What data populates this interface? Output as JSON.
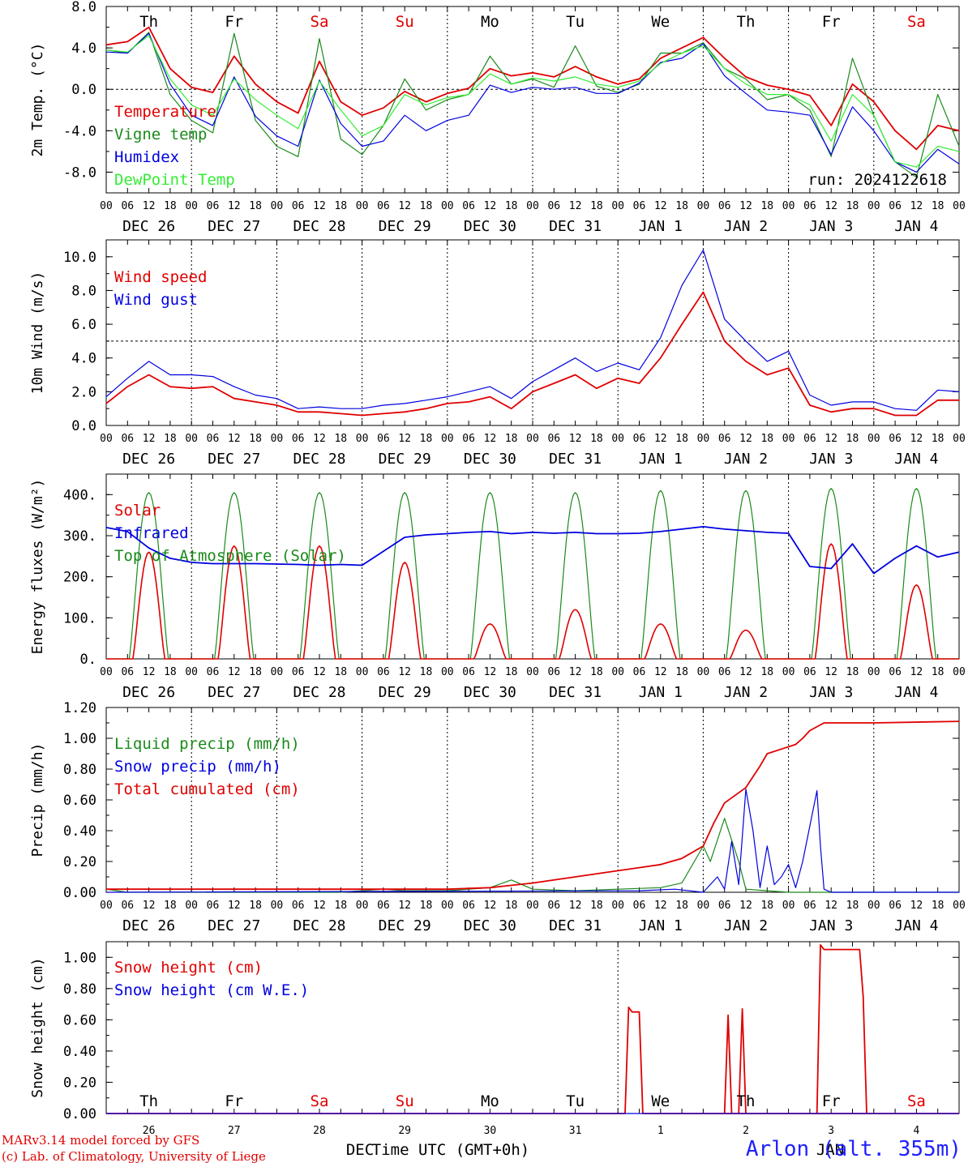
{
  "colors": {
    "temperature": "#e00000",
    "vigne_temp": "#1a8a1a",
    "humidex": "#0000e0",
    "dewpoint": "#33ee33",
    "wind_speed": "#e00000",
    "wind_gust": "#0000e0",
    "solar": "#e00000",
    "infrared": "#0000e0",
    "toa": "#1a8a1a",
    "liquid": "#1a8a1a",
    "snow": "#0000e0",
    "cumulated": "#e00000",
    "snow_height": "#e00000",
    "snow_we": "#0000e0",
    "weekend": "#e00000",
    "axis": "#000000"
  },
  "footer": {
    "credit_line1": "MARv3.14 model forced by GFS",
    "credit_line2": "(c) Lab. of Climatology, University of Liege",
    "station": "Arlon (alt. 355m)"
  },
  "chart_data": [
    {
      "type": "line",
      "ylabel": "2m Temp. (°C)",
      "ylim": [
        -10,
        8
      ],
      "yticks": [
        -8,
        -4,
        0,
        4,
        8
      ],
      "ytick_labels": [
        "-8.0",
        "-4.0",
        "0.0",
        "4.0",
        "8.0"
      ],
      "ref_line": 0,
      "weekdays": [
        {
          "label": "Th",
          "weekend": false
        },
        {
          "label": "Fr",
          "weekend": false
        },
        {
          "label": "Sa",
          "weekend": true
        },
        {
          "label": "Su",
          "weekend": true
        },
        {
          "label": "Mo",
          "weekend": false
        },
        {
          "label": "Tu",
          "weekend": false
        },
        {
          "label": "We",
          "weekend": false
        },
        {
          "label": "Th",
          "weekend": false
        },
        {
          "label": "Fr",
          "weekend": false
        },
        {
          "label": "Sa",
          "weekend": true
        }
      ],
      "run_label": "run: 2024122618",
      "x_hours": [
        0,
        6,
        12,
        18,
        24,
        30,
        36,
        42,
        48,
        54,
        60,
        66,
        72,
        78,
        84,
        90,
        96,
        102,
        108,
        114,
        120,
        126,
        132,
        138,
        144,
        150,
        156,
        162,
        168,
        174,
        180,
        186,
        192,
        198,
        204,
        210,
        216,
        222,
        228,
        234,
        240
      ],
      "series": [
        {
          "name": "Temperature",
          "color_key": "temperature",
          "values": [
            4.3,
            4.6,
            6.0,
            2.0,
            0.2,
            -0.3,
            3.2,
            0.5,
            -1.2,
            -2.3,
            2.7,
            -1.2,
            -2.5,
            -1.8,
            -0.2,
            -1.2,
            -0.4,
            0.1,
            2.0,
            1.3,
            1.6,
            1.2,
            2.2,
            1.2,
            0.5,
            1.0,
            3.0,
            4.0,
            5.0,
            3.0,
            1.2,
            0.4,
            0.0,
            -0.6,
            -3.5,
            0.5,
            -1.2,
            -4.0,
            -5.8,
            -3.5,
            -4.0
          ]
        },
        {
          "name": "Vigne temp",
          "color_key": "vigne_temp",
          "values": [
            3.8,
            3.5,
            5.5,
            -0.5,
            -3.0,
            -4.2,
            5.4,
            -3.0,
            -5.5,
            -6.5,
            4.9,
            -4.8,
            -6.3,
            -3.5,
            1.0,
            -2.0,
            -1.0,
            -0.5,
            3.2,
            0.5,
            1.0,
            0.2,
            4.2,
            0.3,
            -0.3,
            0.5,
            3.5,
            3.5,
            4.5,
            2.0,
            1.0,
            -1.0,
            -0.5,
            -2.0,
            -6.5,
            3.0,
            -2.5,
            -7.0,
            -8.5,
            -0.5,
            -5.5
          ]
        },
        {
          "name": "Humidex",
          "color_key": "humidex",
          "values": [
            3.6,
            3.5,
            5.4,
            0.5,
            -2.5,
            -3.5,
            1.2,
            -2.6,
            -4.5,
            -5.5,
            0.9,
            -3.3,
            -5.5,
            -5.0,
            -2.5,
            -4.0,
            -3.0,
            -2.5,
            0.4,
            -0.3,
            0.2,
            0.0,
            0.2,
            -0.4,
            -0.4,
            0.6,
            2.6,
            3.0,
            4.4,
            1.3,
            -0.4,
            -2.0,
            -2.2,
            -2.5,
            -6.3,
            -1.7,
            -4.0,
            -7.0,
            -8.0,
            -5.8,
            -7.2
          ]
        },
        {
          "name": "DewPoint Temp",
          "color_key": "dewpoint",
          "values": [
            3.8,
            3.6,
            5.2,
            1.0,
            -1.5,
            -2.5,
            1.0,
            -1.0,
            -2.5,
            -3.8,
            0.8,
            -2.0,
            -4.5,
            -3.5,
            -0.5,
            -1.5,
            -0.8,
            -0.5,
            1.5,
            0.5,
            1.1,
            0.8,
            1.2,
            0.5,
            0.2,
            0.8,
            2.5,
            3.5,
            4.2,
            2.0,
            0.5,
            -0.5,
            -0.5,
            -1.5,
            -5.0,
            -0.5,
            -2.5,
            -7.0,
            -7.5,
            -5.5,
            -6.0
          ]
        }
      ]
    },
    {
      "type": "line",
      "ylabel": "10m Wind (m/s)",
      "ylim": [
        0,
        11
      ],
      "yticks": [
        0,
        2,
        4,
        6,
        8,
        10
      ],
      "ytick_labels": [
        "0.0",
        "2.0",
        "4.0",
        "6.0",
        "8.0",
        "10.0"
      ],
      "ref_line": 5,
      "x_hours": [
        0,
        6,
        12,
        18,
        24,
        30,
        36,
        42,
        48,
        54,
        60,
        66,
        72,
        78,
        84,
        90,
        96,
        102,
        108,
        114,
        120,
        126,
        132,
        138,
        144,
        150,
        156,
        162,
        168,
        174,
        180,
        186,
        192,
        198,
        204,
        210,
        216,
        222,
        228,
        234,
        240
      ],
      "series": [
        {
          "name": "Wind speed",
          "color_key": "wind_speed",
          "values": [
            1.3,
            2.3,
            3.0,
            2.3,
            2.2,
            2.3,
            1.6,
            1.4,
            1.2,
            0.8,
            0.8,
            0.7,
            0.6,
            0.7,
            0.8,
            1.0,
            1.3,
            1.4,
            1.7,
            1.0,
            2.0,
            2.5,
            3.0,
            2.2,
            2.8,
            2.5,
            4.0,
            6.0,
            7.9,
            5.0,
            3.8,
            3.0,
            3.4,
            1.2,
            0.8,
            1.0,
            1.0,
            0.6,
            0.6,
            1.5,
            1.5
          ]
        },
        {
          "name": "Wind gust",
          "color_key": "wind_gust",
          "values": [
            1.7,
            2.8,
            3.8,
            3.0,
            3.0,
            2.9,
            2.3,
            1.8,
            1.6,
            1.0,
            1.1,
            1.0,
            1.0,
            1.2,
            1.3,
            1.5,
            1.7,
            2.0,
            2.3,
            1.6,
            2.6,
            3.3,
            4.0,
            3.2,
            3.7,
            3.3,
            5.2,
            8.3,
            10.4,
            6.3,
            5.0,
            3.8,
            4.4,
            1.8,
            1.2,
            1.4,
            1.4,
            1.0,
            0.9,
            2.1,
            2.0
          ]
        }
      ]
    },
    {
      "type": "line",
      "ylabel": "Energy fluxes (W/m²)",
      "ylim": [
        0,
        450
      ],
      "yticks": [
        0,
        100,
        200,
        300,
        400
      ],
      "ytick_labels": [
        "0.",
        "100.",
        "200.",
        "300.",
        "400."
      ],
      "ref_line": null,
      "diurnal_peaks": {
        "solar": [
          260,
          275,
          275,
          235,
          85,
          120,
          85,
          70,
          280,
          180
        ],
        "toa": [
          405,
          405,
          405,
          405,
          405,
          405,
          410,
          410,
          415,
          415
        ]
      },
      "series": [
        {
          "name": "Solar",
          "color_key": "solar"
        },
        {
          "name": "Infrared",
          "color_key": "infrared",
          "x_hours": [
            0,
            6,
            12,
            18,
            24,
            30,
            36,
            42,
            48,
            54,
            60,
            66,
            72,
            78,
            84,
            90,
            96,
            102,
            108,
            114,
            120,
            126,
            132,
            138,
            144,
            150,
            156,
            162,
            168,
            174,
            180,
            186,
            192,
            198,
            204,
            210,
            216,
            222,
            228,
            234,
            240
          ],
          "values": [
            320,
            310,
            270,
            245,
            235,
            232,
            232,
            232,
            231,
            230,
            228,
            230,
            228,
            262,
            296,
            302,
            305,
            308,
            310,
            305,
            308,
            306,
            308,
            305,
            305,
            306,
            310,
            316,
            322,
            316,
            312,
            308,
            306,
            225,
            220,
            280,
            208,
            245,
            275,
            248,
            260
          ]
        },
        {
          "name": "Top of Atmosphere (Solar)",
          "color_key": "toa"
        }
      ]
    },
    {
      "type": "line",
      "ylabel": "Precip (mm/h)",
      "ylim": [
        0,
        1.2
      ],
      "yticks": [
        0,
        0.2,
        0.4,
        0.6,
        0.8,
        1.0,
        1.2
      ],
      "ytick_labels": [
        "0.00",
        "0.20",
        "0.40",
        "0.60",
        "0.80",
        "1.00",
        "1.20"
      ],
      "ref_line": null,
      "series": [
        {
          "name": "Liquid precip (mm/h)",
          "color_key": "liquid",
          "x_hours": [
            0,
            3,
            6,
            66,
            72,
            78,
            84,
            96,
            108,
            114,
            120,
            132,
            144,
            156,
            162,
            168,
            170,
            174,
            178,
            180,
            186,
            192,
            240
          ],
          "values": [
            0.02,
            0.01,
            0,
            0,
            0.01,
            0.02,
            0.01,
            0.01,
            0.03,
            0.08,
            0.02,
            0.01,
            0.02,
            0.03,
            0.06,
            0.3,
            0.2,
            0.48,
            0.2,
            0.02,
            0.01,
            0,
            0
          ]
        },
        {
          "name": "Snow precip (mm/h)",
          "color_key": "snow",
          "x_hours": [
            0,
            150,
            160,
            168,
            172,
            174,
            176,
            178,
            180,
            182,
            184,
            186,
            188,
            190,
            192,
            194,
            196,
            200,
            201,
            202,
            204,
            208,
            240
          ],
          "values": [
            0,
            0.01,
            0.02,
            0.0,
            0.1,
            0.02,
            0.33,
            0.05,
            0.67,
            0.4,
            0.03,
            0.3,
            0.05,
            0.1,
            0.18,
            0.03,
            0.2,
            0.66,
            0.3,
            0.02,
            0.0,
            0.0,
            0.0
          ]
        },
        {
          "name": "Total cumulated (cm)",
          "color_key": "cumulated",
          "x_hours": [
            0,
            24,
            48,
            72,
            90,
            96,
            108,
            120,
            132,
            144,
            150,
            156,
            162,
            168,
            171,
            174,
            180,
            184,
            186,
            190,
            194,
            196,
            198,
            202,
            216,
            240
          ],
          "values": [
            0.02,
            0.02,
            0.02,
            0.02,
            0.02,
            0.02,
            0.03,
            0.06,
            0.1,
            0.14,
            0.16,
            0.18,
            0.22,
            0.3,
            0.45,
            0.58,
            0.68,
            0.82,
            0.9,
            0.93,
            0.96,
            1.0,
            1.05,
            1.1,
            1.1,
            1.11
          ]
        }
      ]
    },
    {
      "type": "line",
      "ylabel": "Snow height (cm)",
      "ylim": [
        0,
        1.1
      ],
      "yticks": [
        0,
        0.2,
        0.4,
        0.6,
        0.8,
        1.0
      ],
      "ytick_labels": [
        "0.00",
        "0.20",
        "0.40",
        "0.60",
        "0.80",
        "1.00"
      ],
      "ref_line": null,
      "series": [
        {
          "name": "Snow height (cm)",
          "color_key": "snow_height",
          "x_hours": [
            0,
            146,
            147,
            148,
            150,
            151,
            240
          ],
          "values": [
            0,
            0,
            0.68,
            0.65,
            0.65,
            0,
            0
          ],
          "extra_spikes": [
            [
              174,
              175,
              176,
              0.63
            ],
            [
              178,
              179,
              180,
              0.67
            ]
          ],
          "plateau": [
            [
              200,
              201,
              202,
              210,
              212,
              213,
              214
            ],
            [
              0,
              1.08,
              1.05,
              1.05,
              1.05,
              0.75,
              0
            ]
          ]
        },
        {
          "name": "Snow height (cm W.E.)",
          "color_key": "snow_we",
          "x_hours": [
            0,
            240
          ],
          "values": [
            0,
            0
          ]
        }
      ],
      "day_numbers": [
        "26",
        "27",
        "28",
        "29",
        "30",
        "31",
        "1",
        "2",
        "3",
        "4"
      ],
      "xlabel": "Time UTC (GMT+0h)",
      "under_labels": [
        "DEC",
        "JAN"
      ]
    }
  ],
  "date_labels": [
    "DEC 26",
    "DEC 27",
    "DEC 28",
    "DEC 29",
    "DEC 30",
    "DEC 31",
    "JAN  1",
    "JAN  2",
    "JAN  3",
    "JAN  4"
  ],
  "hour_ticks": [
    "00",
    "06",
    "12",
    "18"
  ]
}
